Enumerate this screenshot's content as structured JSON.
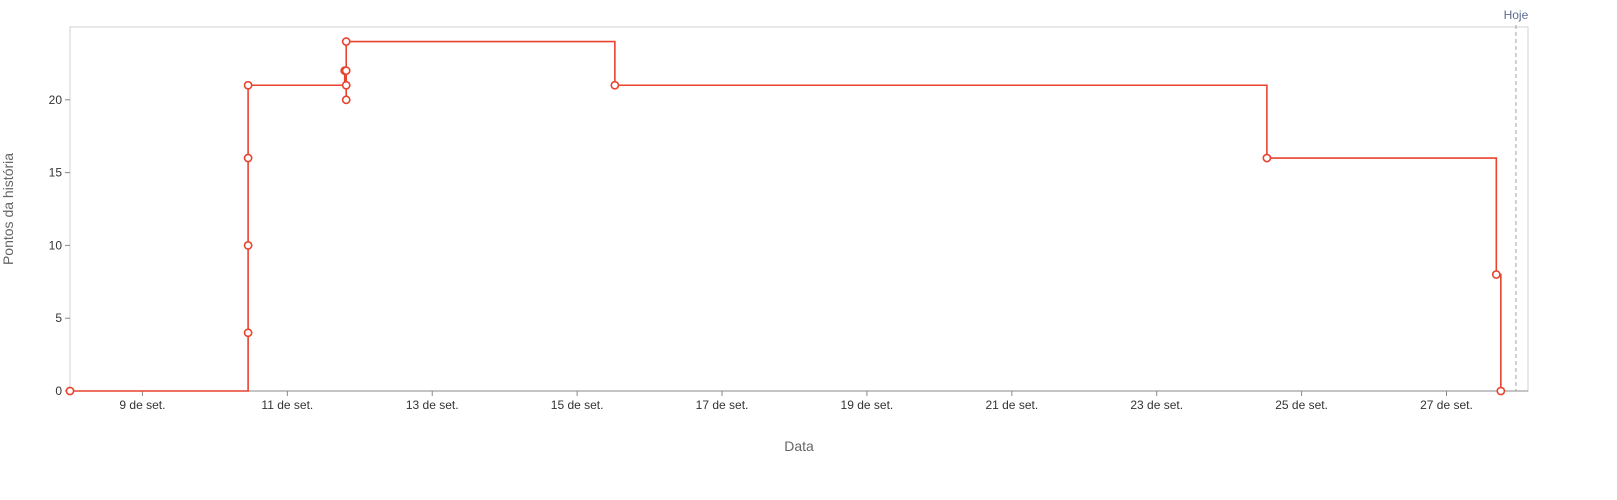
{
  "chart_data": {
    "type": "line",
    "step": "after",
    "xlabel": "Data",
    "ylabel": "Pontos da história",
    "x_range": [
      "2023-09-08T00:00",
      "2023-09-28T03:00"
    ],
    "ylim": [
      0,
      25
    ],
    "y_ticks": [
      0,
      5,
      10,
      15,
      20
    ],
    "x_ticks": [
      {
        "date": "2023-09-09",
        "label": "9 de set."
      },
      {
        "date": "2023-09-11",
        "label": "11 de set."
      },
      {
        "date": "2023-09-13",
        "label": "13 de set."
      },
      {
        "date": "2023-09-15",
        "label": "15 de set."
      },
      {
        "date": "2023-09-17",
        "label": "17 de set."
      },
      {
        "date": "2023-09-19",
        "label": "19 de set."
      },
      {
        "date": "2023-09-21",
        "label": "21 de set."
      },
      {
        "date": "2023-09-23",
        "label": "23 de set."
      },
      {
        "date": "2023-09-25",
        "label": "25 de set."
      },
      {
        "date": "2023-09-27",
        "label": "27 de set."
      }
    ],
    "today": {
      "date": "2023-09-27T23:00",
      "label": "Hoje"
    },
    "series": [
      {
        "color": "#e8432d",
        "points": [
          {
            "x": "2023-09-08T00:00",
            "y": 0
          },
          {
            "x": "2023-09-10T11:00",
            "y": 4
          },
          {
            "x": "2023-09-10T11:00",
            "y": 10
          },
          {
            "x": "2023-09-10T11:00",
            "y": 16
          },
          {
            "x": "2023-09-10T11:00",
            "y": 21
          },
          {
            "x": "2023-09-11T19:00",
            "y": 22
          },
          {
            "x": "2023-09-11T19:30",
            "y": 20
          },
          {
            "x": "2023-09-11T19:30",
            "y": 21
          },
          {
            "x": "2023-09-11T19:30",
            "y": 22
          },
          {
            "x": "2023-09-11T19:30",
            "y": 24
          },
          {
            "x": "2023-09-15T12:30",
            "y": 21
          },
          {
            "x": "2023-09-24T12:30",
            "y": 16
          },
          {
            "x": "2023-09-27T16:30",
            "y": 8
          },
          {
            "x": "2023-09-27T18:00",
            "y": 0
          }
        ]
      }
    ],
    "grid": false,
    "legend": "none"
  }
}
